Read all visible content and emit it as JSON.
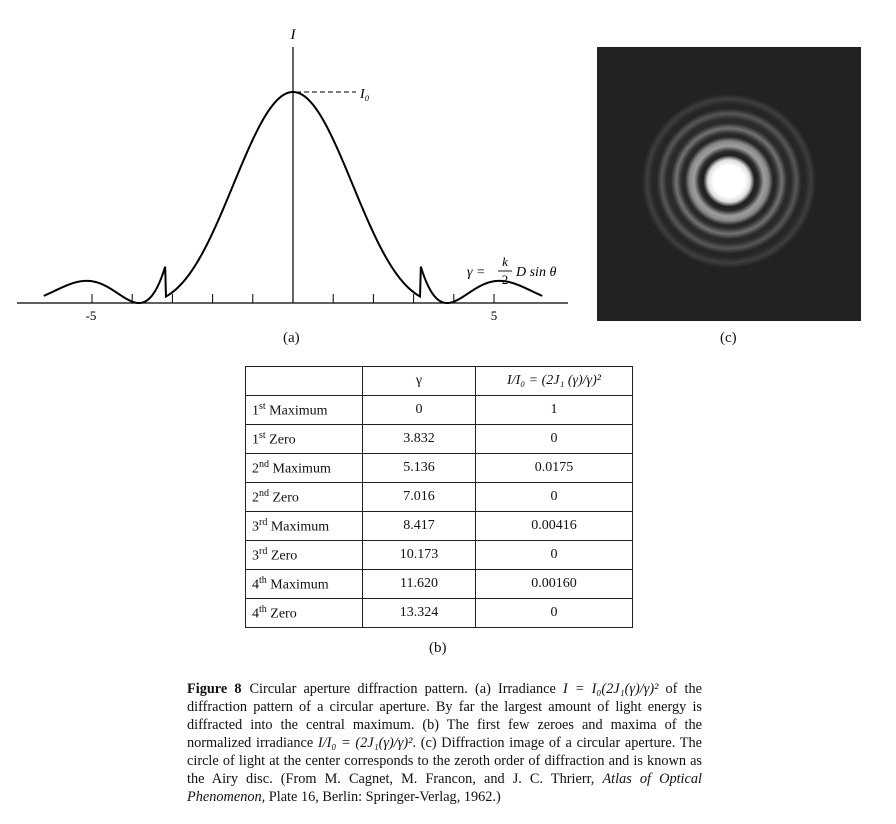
{
  "figure": {
    "label": "Figure 8",
    "caption": {
      "p1": "Circular aperture diffraction pattern. (a) Irradiance ",
      "p2": " of the diffraction pattern of a circular aperture. By far the largest amount of light energy is diffracted into the central maximum. (b) The first few zeroes and maxima of the normalized irradiance ",
      "p3": ". (c) Diffraction image of a circular aperture. The circle of light at the center corresponds to the zeroth order of diffraction and is known as the Airy disc. (From M. Cagnet, M. Francon, and J. C. Thrierr, ",
      "book": "Atlas of Optical Phenomenon",
      "p4": ", Plate 16, Berlin: Springer-Verlag, 1962.)",
      "formula1": "I = I₀(2J₁(γ)/γ)²",
      "formula2": "I/I₀ = (2J₁(γ)/γ)²"
    }
  },
  "panel_a": {
    "label": "(a)",
    "y_axis_label": "I",
    "peak_label": "I₀",
    "x_axis_formula": {
      "lhs": "γ =",
      "num": "k",
      "den": "2",
      "rhs": "D sin θ"
    }
  },
  "panel_b": {
    "label": "(b)",
    "headers": [
      "",
      "γ",
      "I/I₀ = (2J₁ (γ)/γ)²"
    ],
    "rows": [
      {
        "ord": "1",
        "sup": "st",
        "name": "Maximum",
        "gamma": "0",
        "ratio": "1"
      },
      {
        "ord": "1",
        "sup": "st",
        "name": "Zero",
        "gamma": "3.832",
        "ratio": "0"
      },
      {
        "ord": "2",
        "sup": "nd",
        "name": "Maximum",
        "gamma": "5.136",
        "ratio": "0.0175"
      },
      {
        "ord": "2",
        "sup": "nd",
        "name": "Zero",
        "gamma": "7.016",
        "ratio": "0"
      },
      {
        "ord": "3",
        "sup": "rd",
        "name": "Maximum",
        "gamma": "8.417",
        "ratio": "0.00416"
      },
      {
        "ord": "3",
        "sup": "rd",
        "name": "Zero",
        "gamma": "10.173",
        "ratio": "0"
      },
      {
        "ord": "4",
        "sup": "th",
        "name": "Maximum",
        "gamma": "11.620",
        "ratio": "0.00160"
      },
      {
        "ord": "4",
        "sup": "th",
        "name": "Zero",
        "gamma": "13.324",
        "ratio": "0"
      }
    ]
  },
  "panel_c": {
    "label": "(c)"
  },
  "chart_data": {
    "type": "line",
    "title": "",
    "xlabel": "γ = (k/2) D sin θ",
    "ylabel": "I",
    "xlim": [
      -6.2,
      6.2
    ],
    "x_tick_labels": [
      "-5",
      "5"
    ],
    "x_ticks": [
      -5,
      -4,
      -3,
      -2,
      -1,
      1,
      2,
      3,
      4,
      5
    ],
    "series": [
      {
        "function": "I₀(2J₁(γ)/γ)²",
        "peak": 1
      }
    ]
  }
}
